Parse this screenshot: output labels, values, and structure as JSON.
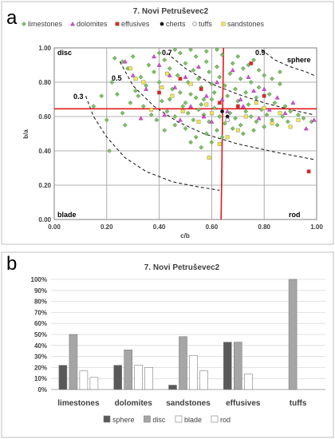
{
  "panels": [
    "a",
    "b"
  ],
  "chart_data": [
    {
      "type": "scatter",
      "title": "7. Novi Petruševec2",
      "xlabel": "c/b",
      "ylabel": "b/a",
      "xlim": [
        0,
        1
      ],
      "ylim": [
        0,
        1
      ],
      "xticks": [
        "0.00",
        "0.20",
        "0.40",
        "0.60",
        "0.80",
        "1.00"
      ],
      "yticks": [
        "0.00",
        "0.20",
        "0.40",
        "0.60",
        "0.80",
        "1.00"
      ],
      "grid": true,
      "legend": "top",
      "corner_labels": {
        "top_left": "disc",
        "top_right": "sphere",
        "bottom_left": "blade",
        "bottom_right": "rod"
      },
      "contour_labels": [
        "0.3",
        "0.5",
        "0.7",
        "0.9"
      ],
      "reference_lines": {
        "horizontal_y": 0.645,
        "vertical_x": 0.645
      },
      "series": [
        {
          "name": "limestones",
          "marker": "diamond",
          "color": "#7fbf6a",
          "points": [
            [
              0.23,
              0.94
            ],
            [
              0.26,
              0.92
            ],
            [
              0.28,
              0.88
            ],
            [
              0.3,
              0.95
            ],
            [
              0.33,
              0.83
            ],
            [
              0.35,
              0.78
            ],
            [
              0.36,
              0.9
            ],
            [
              0.38,
              0.86
            ],
            [
              0.4,
              0.8
            ],
            [
              0.42,
              0.93
            ],
            [
              0.44,
              0.88
            ],
            [
              0.45,
              0.76
            ],
            [
              0.47,
              0.84
            ],
            [
              0.48,
              0.97
            ],
            [
              0.5,
              0.91
            ],
            [
              0.51,
              0.8
            ],
            [
              0.52,
              0.73
            ],
            [
              0.53,
              0.87
            ],
            [
              0.54,
              0.95
            ],
            [
              0.55,
              0.82
            ],
            [
              0.56,
              0.77
            ],
            [
              0.57,
              0.7
            ],
            [
              0.58,
              0.92
            ],
            [
              0.59,
              0.86
            ],
            [
              0.6,
              0.79
            ],
            [
              0.61,
              0.74
            ],
            [
              0.62,
              0.89
            ],
            [
              0.63,
              0.83
            ],
            [
              0.64,
              0.96
            ],
            [
              0.65,
              0.78
            ],
            [
              0.66,
              0.72
            ],
            [
              0.67,
              0.85
            ],
            [
              0.68,
              0.91
            ],
            [
              0.69,
              0.76
            ],
            [
              0.7,
              0.69
            ],
            [
              0.71,
              0.82
            ],
            [
              0.72,
              0.88
            ],
            [
              0.73,
              0.74
            ],
            [
              0.74,
              0.67
            ],
            [
              0.75,
              0.8
            ],
            [
              0.76,
              0.93
            ],
            [
              0.77,
              0.71
            ],
            [
              0.78,
              0.77
            ],
            [
              0.8,
              0.84
            ],
            [
              0.82,
              0.73
            ],
            [
              0.84,
              0.68
            ],
            [
              0.86,
              0.79
            ],
            [
              0.88,
              0.66
            ],
            [
              0.9,
              0.63
            ],
            [
              0.93,
              0.61
            ],
            [
              0.95,
              0.59
            ],
            [
              0.98,
              0.57
            ],
            [
              0.32,
              0.72
            ],
            [
              0.34,
              0.66
            ],
            [
              0.37,
              0.61
            ],
            [
              0.39,
              0.58
            ],
            [
              0.41,
              0.69
            ],
            [
              0.43,
              0.63
            ],
            [
              0.46,
              0.6
            ],
            [
              0.49,
              0.66
            ],
            [
              0.51,
              0.62
            ],
            [
              0.53,
              0.58
            ],
            [
              0.55,
              0.64
            ],
            [
              0.57,
              0.61
            ],
            [
              0.59,
              0.57
            ],
            [
              0.61,
              0.65
            ],
            [
              0.63,
              0.6
            ],
            [
              0.65,
              0.56
            ],
            [
              0.67,
              0.62
            ],
            [
              0.69,
              0.59
            ],
            [
              0.71,
              0.55
            ],
            [
              0.73,
              0.63
            ],
            [
              0.75,
              0.6
            ],
            [
              0.77,
              0.57
            ],
            [
              0.79,
              0.64
            ],
            [
              0.81,
              0.61
            ],
            [
              0.83,
              0.58
            ],
            [
              0.85,
              0.55
            ],
            [
              0.87,
              0.6
            ],
            [
              0.89,
              0.57
            ],
            [
              0.26,
              0.62
            ],
            [
              0.29,
              0.68
            ],
            [
              0.31,
              0.75
            ],
            [
              0.22,
              0.8
            ],
            [
              0.2,
              0.58
            ],
            [
              0.24,
              0.73
            ],
            [
              0.27,
              0.55
            ],
            [
              0.15,
              0.66
            ],
            [
              0.18,
              0.72
            ],
            [
              0.4,
              0.97
            ],
            [
              0.46,
              0.99
            ],
            [
              0.52,
              0.99
            ],
            [
              0.58,
              0.98
            ],
            [
              0.62,
              0.99
            ],
            [
              0.7,
              0.95
            ],
            [
              0.74,
              0.9
            ],
            [
              0.78,
              0.87
            ],
            [
              0.83,
              0.82
            ],
            [
              0.86,
              0.86
            ],
            [
              0.44,
              0.7
            ],
            [
              0.48,
              0.74
            ],
            [
              0.5,
              0.68
            ],
            [
              0.54,
              0.71
            ],
            [
              0.56,
              0.67
            ],
            [
              0.6,
              0.7
            ],
            [
              0.62,
              0.52
            ],
            [
              0.58,
              0.5
            ],
            [
              0.54,
              0.48
            ],
            [
              0.5,
              0.53
            ],
            [
              0.46,
              0.55
            ],
            [
              0.42,
              0.52
            ],
            [
              0.72,
              0.5
            ],
            [
              0.76,
              0.52
            ],
            [
              0.8,
              0.54
            ],
            [
              0.68,
              0.53
            ],
            [
              0.64,
              0.48
            ],
            [
              0.6,
              0.45
            ],
            [
              0.56,
              0.42
            ],
            [
              0.52,
              0.45
            ],
            [
              0.21,
              0.4
            ]
          ]
        },
        {
          "name": "dolomites",
          "marker": "triangle",
          "color": "#d24fd2",
          "points": [
            [
              0.27,
              0.92
            ],
            [
              0.35,
              0.76
            ],
            [
              0.38,
              0.95
            ],
            [
              0.42,
              0.61
            ],
            [
              0.44,
              0.84
            ],
            [
              0.48,
              0.58
            ],
            [
              0.52,
              0.66
            ],
            [
              0.55,
              0.89
            ],
            [
              0.58,
              0.72
            ],
            [
              0.62,
              0.8
            ],
            [
              0.66,
              0.63
            ],
            [
              0.68,
              0.87
            ],
            [
              0.71,
              0.7
            ],
            [
              0.74,
              0.83
            ],
            [
              0.78,
              0.59
            ],
            [
              0.8,
              0.76
            ],
            [
              0.82,
              0.64
            ],
            [
              0.85,
              0.71
            ],
            [
              0.88,
              0.62
            ],
            [
              0.91,
              0.68
            ],
            [
              0.96,
              0.53
            ],
            [
              0.99,
              0.58
            ],
            [
              0.6,
              0.57
            ],
            [
              0.46,
              0.77
            ],
            [
              0.33,
              0.59
            ],
            [
              0.64,
              0.7
            ],
            [
              0.72,
              0.66
            ],
            [
              0.5,
              0.83
            ],
            [
              0.4,
              0.9
            ],
            [
              0.57,
              0.6
            ],
            [
              0.76,
              0.75
            ],
            [
              0.3,
              0.84
            ]
          ]
        },
        {
          "name": "effusives",
          "marker": "square",
          "color": "#e8201c",
          "points": [
            [
              0.4,
              0.74
            ],
            [
              0.48,
              0.82
            ],
            [
              0.56,
              0.76
            ],
            [
              0.63,
              0.68
            ],
            [
              0.7,
              0.66
            ],
            [
              0.75,
              0.91
            ],
            [
              0.8,
              0.72
            ],
            [
              0.97,
              0.28
            ]
          ]
        },
        {
          "name": "cherts",
          "marker": "circle",
          "color": "#111111",
          "points": [
            [
              0.64,
              0.63
            ],
            [
              0.66,
              0.6
            ]
          ]
        },
        {
          "name": "tuffs",
          "marker": "circle-open",
          "color": "#7a7a7a",
          "points": [
            [
              0.66,
              0.58
            ]
          ]
        },
        {
          "name": "sandstones",
          "marker": "square",
          "color": "#f3e64a",
          "points": [
            [
              0.29,
              0.88
            ],
            [
              0.31,
              0.82
            ],
            [
              0.34,
              0.8
            ],
            [
              0.37,
              0.64
            ],
            [
              0.41,
              0.77
            ],
            [
              0.43,
              0.85
            ],
            [
              0.45,
              0.72
            ],
            [
              0.49,
              0.63
            ],
            [
              0.52,
              0.79
            ],
            [
              0.55,
              0.57
            ],
            [
              0.58,
              0.67
            ],
            [
              0.6,
              0.62
            ],
            [
              0.63,
              0.44
            ],
            [
              0.66,
              0.48
            ],
            [
              0.7,
              0.52
            ],
            [
              0.73,
              0.6
            ],
            [
              0.77,
              0.68
            ],
            [
              0.8,
              0.65
            ],
            [
              0.83,
              0.56
            ],
            [
              0.86,
              0.62
            ],
            [
              0.9,
              0.54
            ],
            [
              0.93,
              0.58
            ],
            [
              0.59,
              0.36
            ]
          ]
        }
      ]
    },
    {
      "type": "bar",
      "title": "7. Novi Petruševec2",
      "categories": [
        "limestones",
        "dolomites",
        "sandstones",
        "effusives",
        "tuffs"
      ],
      "ylim": [
        0,
        100
      ],
      "yticks": [
        "0%",
        "10%",
        "20%",
        "30%",
        "40%",
        "50%",
        "60%",
        "70%",
        "80%",
        "90%",
        "100%"
      ],
      "legend": "bottom",
      "series": [
        {
          "name": "sphere",
          "color": "#595959",
          "values": [
            22,
            22,
            4,
            43,
            0
          ]
        },
        {
          "name": "disc",
          "color": "#a6a6a6",
          "values": [
            50,
            36,
            48,
            43,
            100
          ]
        },
        {
          "name": "blade",
          "color": "#ffffff",
          "values": [
            17,
            22,
            31,
            14,
            0
          ]
        },
        {
          "name": "rod",
          "color": "#ffffff",
          "values": [
            11,
            20,
            17,
            0,
            0
          ]
        }
      ]
    }
  ]
}
